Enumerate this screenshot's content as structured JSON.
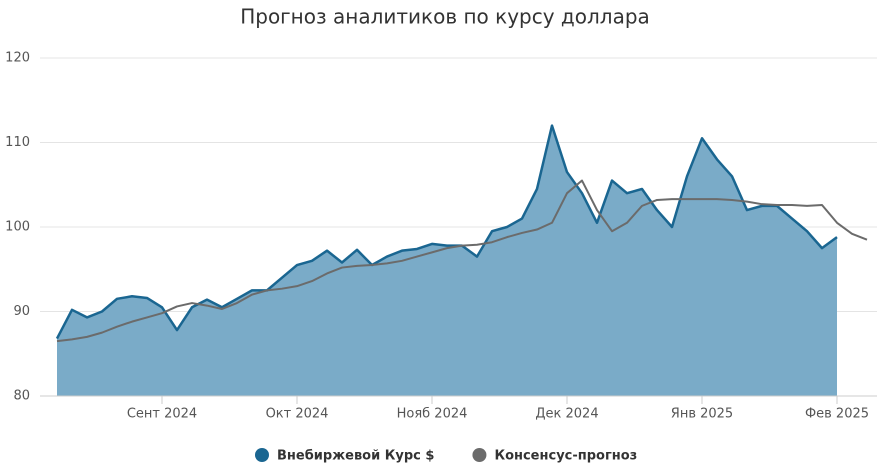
{
  "chart_data": {
    "type": "line",
    "title": "Прогноз аналитиков по курсу доллара",
    "categories": [
      null,
      null,
      null,
      null,
      null,
      null,
      null,
      "Сент 2024",
      null,
      null,
      null,
      null,
      null,
      null,
      null,
      null,
      "Окт 2024",
      null,
      null,
      null,
      null,
      null,
      null,
      null,
      null,
      "Нояб 2024",
      null,
      null,
      null,
      null,
      null,
      null,
      null,
      null,
      "Дек 2024",
      null,
      null,
      null,
      null,
      null,
      null,
      null,
      null,
      "Янв 2025",
      null,
      null,
      null,
      null,
      null,
      null,
      null,
      null,
      "Фев 2025",
      null,
      null
    ],
    "series": [
      {
        "name": "Внебиржевой Курс $",
        "color": "#1a6691",
        "fill": "#7aabc8",
        "area": true,
        "values": [
          86.8,
          90.2,
          89.3,
          90,
          91.5,
          91.8,
          91.6,
          90.5,
          87.8,
          90.5,
          91.4,
          90.5,
          91.5,
          92.5,
          92.5,
          94,
          95.5,
          96,
          97.2,
          95.8,
          97.3,
          95.5,
          96.5,
          97.2,
          97.4,
          98,
          97.8,
          97.8,
          96.5,
          99.5,
          100,
          101,
          104.5,
          112,
          106.5,
          104,
          100.5,
          105.5,
          104,
          104.5,
          102,
          100,
          106,
          110.5,
          108,
          106,
          102,
          102.5,
          102.5,
          101,
          99.5,
          97.5,
          98.8,
          null,
          null
        ]
      },
      {
        "name": "Консенсус-прогноз",
        "color": "#6b6b6b",
        "values": [
          86.5,
          86.7,
          87,
          87.5,
          88.2,
          88.8,
          89.3,
          89.8,
          90.6,
          91,
          90.7,
          90.3,
          91,
          92,
          92.5,
          92.7,
          93,
          93.6,
          94.5,
          95.2,
          95.4,
          95.5,
          95.7,
          96,
          96.5,
          97,
          97.5,
          97.8,
          97.9,
          98.2,
          98.8,
          99.3,
          99.7,
          100.5,
          104,
          105.5,
          102,
          99.5,
          100.5,
          102.5,
          103.2,
          103.3,
          103.3,
          103.3,
          103.3,
          103.2,
          103,
          102.7,
          102.6,
          102.6,
          102.5,
          102.6,
          100.5,
          99.2,
          98.5
        ]
      }
    ],
    "ylim": [
      80,
      120
    ],
    "yticks": [
      80,
      90,
      100,
      110,
      120
    ],
    "grid": true,
    "legend": "bottom"
  }
}
